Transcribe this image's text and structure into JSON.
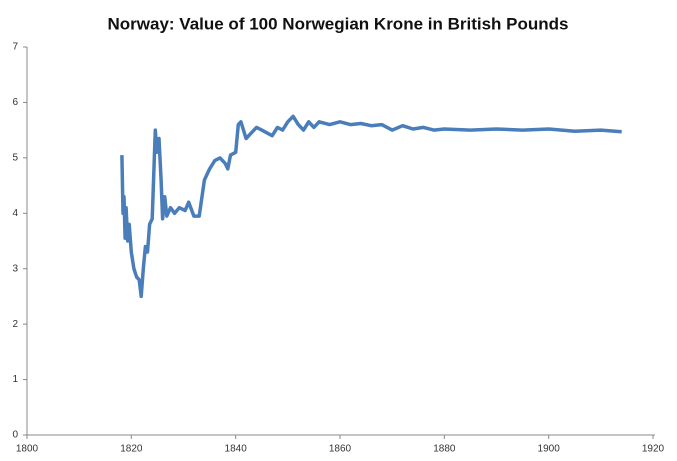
{
  "chart_data": {
    "type": "line",
    "title": "Norway: Value of 100 Norwegian Krone in British Pounds",
    "xlim": [
      1800,
      1920
    ],
    "xticks": [
      1800,
      1820,
      1840,
      1860,
      1880,
      1900,
      1920
    ],
    "ylim": [
      0,
      7
    ],
    "yticks": [
      0,
      1,
      2,
      3,
      4,
      5,
      6,
      7
    ],
    "grid": false,
    "x": [
      1818.2,
      1818.4,
      1818.6,
      1818.8,
      1819.0,
      1819.3,
      1819.6,
      1820.0,
      1820.5,
      1821.0,
      1821.5,
      1821.9,
      1822.3,
      1822.7,
      1823.1,
      1823.5,
      1824.0,
      1824.6,
      1824.9,
      1825.3,
      1825.7,
      1826.0,
      1826.4,
      1826.8,
      1827.5,
      1828.3,
      1829.2,
      1830.3,
      1831,
      1832,
      1833,
      1834,
      1835,
      1836,
      1837,
      1838,
      1838.5,
      1839,
      1840,
      1840.5,
      1841,
      1842,
      1843,
      1844,
      1845,
      1846,
      1847,
      1848,
      1849,
      1850,
      1851,
      1852,
      1853,
      1854,
      1855,
      1856,
      1858,
      1860,
      1862,
      1864,
      1866,
      1868,
      1870,
      1872,
      1874,
      1876,
      1878,
      1880,
      1885,
      1890,
      1895,
      1900,
      1905,
      1910,
      1914
    ],
    "series": [
      {
        "color": "#4a7ebb",
        "values": [
          5.05,
          4.0,
          4.3,
          3.55,
          4.1,
          3.5,
          3.8,
          3.3,
          3.0,
          2.85,
          2.8,
          2.5,
          3.0,
          3.4,
          3.3,
          3.8,
          3.9,
          5.5,
          5.1,
          5.35,
          4.6,
          3.9,
          4.3,
          3.95,
          4.1,
          4.0,
          4.1,
          4.05,
          4.2,
          3.95,
          3.95,
          4.6,
          4.8,
          4.95,
          5.0,
          4.9,
          4.8,
          5.05,
          5.1,
          5.6,
          5.65,
          5.35,
          5.45,
          5.55,
          5.5,
          5.45,
          5.4,
          5.55,
          5.5,
          5.65,
          5.75,
          5.6,
          5.5,
          5.65,
          5.55,
          5.65,
          5.6,
          5.65,
          5.6,
          5.62,
          5.58,
          5.6,
          5.5,
          5.58,
          5.52,
          5.55,
          5.5,
          5.52,
          5.5,
          5.52,
          5.5,
          5.52,
          5.48,
          5.5,
          5.47
        ]
      }
    ]
  }
}
